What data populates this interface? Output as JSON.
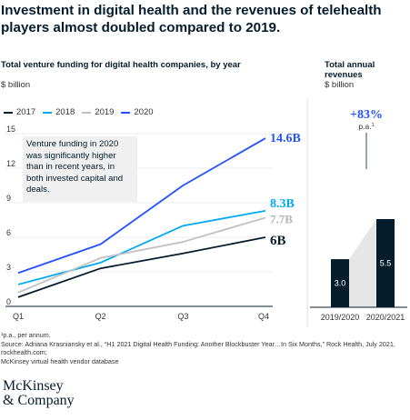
{
  "headline": "Investment in digital health and the revenues of telehealth players almost doubled compared to 2019.",
  "colors": {
    "2017": "#051c2c",
    "2018": "#00a9f4",
    "2019": "#c0c0c0",
    "2020": "#2251ff",
    "bar": "#051c2c",
    "band": "#e6e6e6"
  },
  "chart_data": [
    {
      "type": "line",
      "title": "Total venture funding for digital health companies, by year",
      "unit": "$ billion",
      "categories": [
        "Q1",
        "Q2",
        "Q3",
        "Q4"
      ],
      "y_ticks": [
        "0",
        "3",
        "6",
        "9",
        "12",
        "15"
      ],
      "ylim": [
        0,
        15
      ],
      "grid": true,
      "series": [
        {
          "name": "2017",
          "values": [
            0.8,
            3.3,
            4.6,
            6.0
          ],
          "end_label": "6B"
        },
        {
          "name": "2018",
          "values": [
            1.9,
            3.8,
            7.0,
            8.3
          ],
          "end_label": "8.3B"
        },
        {
          "name": "2019",
          "values": [
            1.2,
            4.2,
            5.6,
            7.7
          ],
          "end_label": "7.7B"
        },
        {
          "name": "2020",
          "values": [
            2.9,
            5.4,
            10.5,
            14.6
          ],
          "end_label": "14.6B"
        }
      ],
      "annotation": "Venture funding in 2020 was significantly higher than in recent years, in both invested capital and deals."
    },
    {
      "type": "bar",
      "title": "Total annual revenues",
      "unit": "$ billion",
      "categories": [
        "2019/2020",
        "2020/2021"
      ],
      "values": [
        3.0,
        5.5
      ],
      "value_labels": [
        "3.0",
        "5.5"
      ],
      "growth_label": "+83%",
      "growth_note": "p.a.",
      "growth_note_sup": "1"
    }
  ],
  "footnote": [
    "¹p.a., per annum.",
    "Source: Adriana Krasniansky et al., “H1 2021 Digital Health Funding: Another Blockbuster Year…In Six Months,” Rock Health, July 2021, rockhealth.com;",
    "McKinsey virtual health vendor database"
  ],
  "logo": [
    "McKinsey",
    "& Company"
  ]
}
